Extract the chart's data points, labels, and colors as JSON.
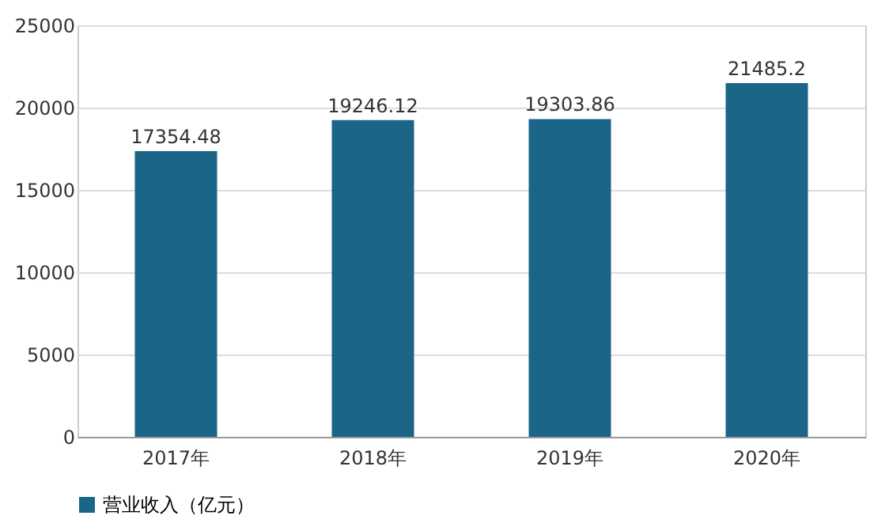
{
  "chart_data": {
    "type": "bar",
    "categories": [
      "2017年",
      "2018年",
      "2019年",
      "2020年"
    ],
    "series": [
      {
        "name": "营业收入（亿元）",
        "color": "#1b6589",
        "values": [
          17354.48,
          19246.12,
          19303.86,
          21485.2
        ]
      }
    ],
    "data_labels": true,
    "ylim": [
      0,
      25000
    ],
    "yticks": [
      0,
      5000,
      10000,
      15000,
      20000,
      25000
    ],
    "grid": "y",
    "legend": "bottom"
  }
}
